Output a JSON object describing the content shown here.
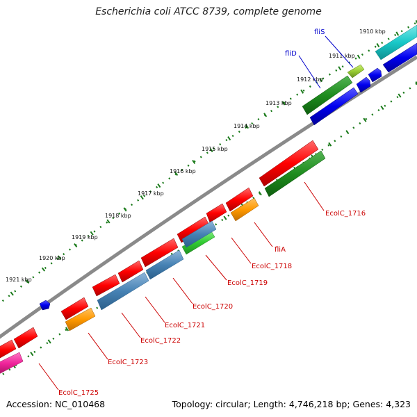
{
  "title": "Escherichia coli ATCC 8739, complete genome",
  "footer": {
    "accession": "Accession: NC_010468",
    "topology": "Topology: circular; Length: 4,746,218 bp; Genes: 4,323"
  },
  "ticks": [
    {
      "id": "1910",
      "label": "1910 kbp"
    },
    {
      "id": "1911",
      "label": "1911 kbp"
    },
    {
      "id": "1912",
      "label": "1912 kbp"
    },
    {
      "id": "1913",
      "label": "1913 kbp"
    },
    {
      "id": "1914",
      "label": "1914 kbp"
    },
    {
      "id": "1915",
      "label": "1915 kbp"
    },
    {
      "id": "1916",
      "label": "1916 kbp"
    },
    {
      "id": "1917",
      "label": "1917 kbp"
    },
    {
      "id": "1918",
      "label": "1918 kbp"
    },
    {
      "id": "1919",
      "label": "1919 kbp"
    },
    {
      "id": "1920",
      "label": "1920 kbp"
    },
    {
      "id": "1921",
      "label": "1921 kbp"
    }
  ],
  "gene_labels": [
    {
      "id": "fliS",
      "text": "fliS",
      "color": "#0000cc"
    },
    {
      "id": "fliD",
      "text": "fliD",
      "color": "#0000cc"
    },
    {
      "id": "fliA",
      "text": "fliA",
      "color": "#cc0000"
    },
    {
      "id": "EcolC_1716",
      "text": "EcolC_1716",
      "color": "#cc0000"
    },
    {
      "id": "EcolC_1718",
      "text": "EcolC_1718",
      "color": "#cc0000"
    },
    {
      "id": "EcolC_1719",
      "text": "EcolC_1719",
      "color": "#cc0000"
    },
    {
      "id": "EcolC_1720",
      "text": "EcolC_1720",
      "color": "#cc0000"
    },
    {
      "id": "EcolC_1721",
      "text": "EcolC_1721",
      "color": "#cc0000"
    },
    {
      "id": "EcolC_1722",
      "text": "EcolC_1722",
      "color": "#cc0000"
    },
    {
      "id": "EcolC_1723",
      "text": "EcolC_1723",
      "color": "#cc0000"
    },
    {
      "id": "EcolC_1725",
      "text": "EcolC_1725",
      "color": "#cc0000"
    }
  ],
  "colors": {
    "backbone": "#8a8a8a",
    "tick_track": "#1a7a1a",
    "red": "#ff0000",
    "blue": "#0000ee",
    "steelblue": "#4682b4",
    "dark_green": "#1e8c1e",
    "light_green": "#33cc33",
    "orange": "#ff9900",
    "cyan": "#19c8c8",
    "magenta": "#ee2299",
    "yellow_green": "#99cc33"
  }
}
